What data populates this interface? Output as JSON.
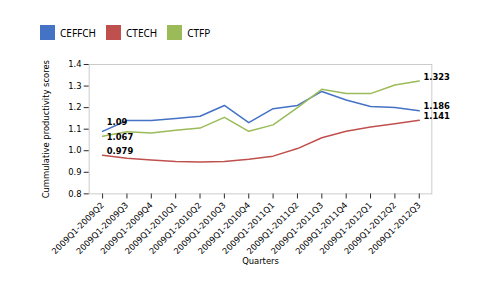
{
  "chart_data": {
    "type": "line",
    "xlabel": "Quarters",
    "ylabel": "Cummulative productivity scores",
    "categories": [
      "2009Q1-2009Q2",
      "2009Q1-2009Q3",
      "2009Q1-2009Q4",
      "2009Q1-2010Q1",
      "2009Q1-2010Q2",
      "2009Q1-2010Q3",
      "2009Q1-2010Q4",
      "2009Q1-2011Q1",
      "2009Q1-2011Q2",
      "2009Q1-2011Q3",
      "2009Q1-2011Q4",
      "2009Q1-2012Q1",
      "2009Q1-2012Q2",
      "2009Q1-2012Q3"
    ],
    "series": [
      {
        "name": "CEFFCH",
        "color": "#4472C4",
        "values": [
          1.09,
          1.14,
          1.14,
          1.15,
          1.16,
          1.21,
          1.13,
          1.195,
          1.21,
          1.275,
          1.235,
          1.205,
          1.2,
          1.186
        ]
      },
      {
        "name": "CTECH",
        "color": "#C0504D",
        "values": [
          0.979,
          0.965,
          0.957,
          0.95,
          0.948,
          0.95,
          0.96,
          0.975,
          1.01,
          1.06,
          1.09,
          1.11,
          1.125,
          1.141
        ]
      },
      {
        "name": "CTFP",
        "color": "#9BBB59",
        "values": [
          1.067,
          1.088,
          1.082,
          1.095,
          1.105,
          1.155,
          1.09,
          1.12,
          1.2,
          1.285,
          1.265,
          1.265,
          1.305,
          1.323
        ]
      }
    ],
    "ylim": [
      0.8,
      1.4
    ],
    "yticks": [
      0.8,
      0.9,
      {
        "value": 1,
        "label": "1.0"
      },
      1.1,
      1.2,
      1.3,
      1.4
    ],
    "grid": false,
    "legend": "top",
    "annotations": [
      {
        "text": "1.09",
        "series": "CEFFCH",
        "category": "2009Q1-2009Q2"
      },
      {
        "text": "1.067",
        "series": "CTFP",
        "category": "2009Q1-2009Q2"
      },
      {
        "text": "0.979",
        "series": "CTECH",
        "category": "2009Q1-2009Q2"
      },
      {
        "text": "1.323",
        "series": "CTFP",
        "category": "2009Q1-2012Q3"
      },
      {
        "text": "1.186",
        "series": "CEFFCH",
        "category": "2009Q1-2012Q3"
      },
      {
        "text": "1.141",
        "series": "CTECH",
        "category": "2009Q1-2012Q3"
      }
    ]
  }
}
